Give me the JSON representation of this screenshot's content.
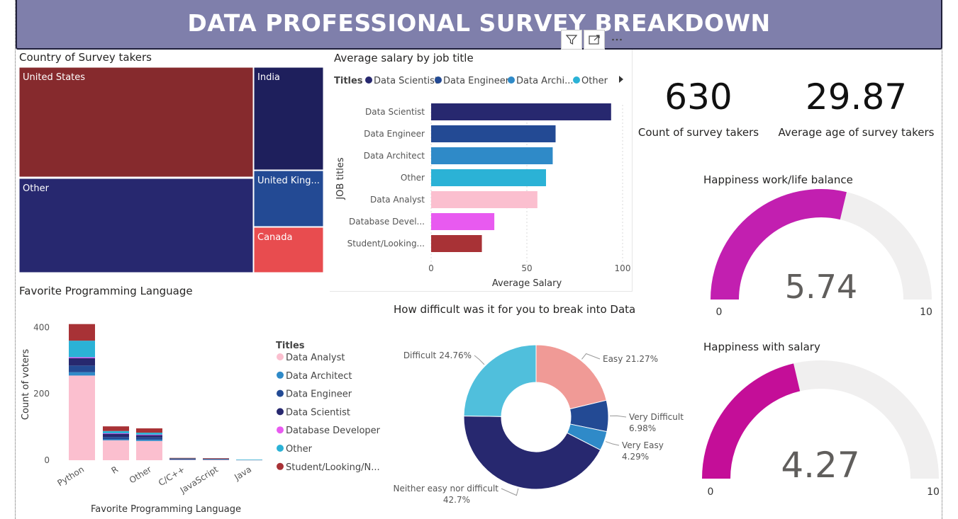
{
  "header": {
    "title": "DATA PROFESSIONAL SURVEY BREAKDOWN"
  },
  "toolbar": {
    "icons": [
      "filter-icon",
      "focus-mode-icon",
      "more-options-icon"
    ]
  },
  "kpis": {
    "count": {
      "value": "630",
      "label": "Count of survey takers"
    },
    "age": {
      "value": "29.87",
      "label": "Average age of survey takers"
    }
  },
  "chart_data": [
    {
      "id": "treemap",
      "type": "treemap",
      "title": "Country of Survey takers",
      "items": [
        {
          "label": "United States",
          "color": "#862a2d"
        },
        {
          "label": "Other",
          "color": "#27286f"
        },
        {
          "label": "India",
          "color": "#1e1f5c"
        },
        {
          "label": "United King...",
          "color": "#234a94"
        },
        {
          "label": "Canada",
          "color": "#e84c4f"
        }
      ]
    },
    {
      "id": "salary",
      "type": "bar",
      "orientation": "horizontal",
      "title": "Average salary by job title",
      "legend_title": "Titles",
      "legend": [
        {
          "name": "Data Scientist",
          "color": "#27286f"
        },
        {
          "name": "Data Engineer",
          "color": "#234a94"
        },
        {
          "name": "Data Archi...",
          "color": "#2f8ac8"
        },
        {
          "name": "Other",
          "color": "#2bb2d6"
        }
      ],
      "categories": [
        "Data Scientist",
        "Data Engineer",
        "Data Architect",
        "Other",
        "Data Analyst",
        "Database Devel...",
        "Student/Looking..."
      ],
      "values": [
        94,
        65,
        63.5,
        60,
        55.5,
        33,
        26.5
      ],
      "colors": [
        "#27286f",
        "#234a94",
        "#2f8ac8",
        "#2bb2d6",
        "#fbbfcf",
        "#e85af0",
        "#a83236"
      ],
      "xlabel": "Average Salary",
      "ylabel": "JOB titles",
      "xticks": [
        0,
        50,
        100
      ],
      "xlim": [
        0,
        100
      ]
    },
    {
      "id": "language",
      "type": "bar",
      "stacked": true,
      "title": "Favorite Programming Language",
      "categories": [
        "Python",
        "R",
        "Other",
        "C/C++",
        "JavaScript",
        "Java"
      ],
      "series": [
        {
          "name": "Data Analyst",
          "color": "#fbbfcf",
          "values": [
            255,
            60,
            58,
            2,
            2,
            1
          ]
        },
        {
          "name": "Data Architect",
          "color": "#2f8ac8",
          "values": [
            10,
            3,
            4,
            1,
            0,
            0
          ]
        },
        {
          "name": "Data Engineer",
          "color": "#234a94",
          "values": [
            20,
            7,
            7,
            1,
            1,
            0
          ]
        },
        {
          "name": "Data Scientist",
          "color": "#27286f",
          "values": [
            22,
            10,
            7,
            1,
            1,
            0
          ]
        },
        {
          "name": "Database Developer",
          "color": "#e85af0",
          "values": [
            3,
            1,
            1,
            0,
            0,
            0
          ]
        },
        {
          "name": "Other",
          "color": "#2bb2d6",
          "values": [
            50,
            7,
            6,
            1,
            1,
            1
          ]
        },
        {
          "name": "Student/Looking/N...",
          "color": "#a83236",
          "values": [
            50,
            14,
            13,
            1,
            1,
            0
          ]
        }
      ],
      "legend_title": "Titles",
      "xlabel": "Favorite Programming Language",
      "ylabel": "Count of voters",
      "yticks": [
        0,
        200,
        400
      ],
      "ylim": [
        0,
        420
      ]
    },
    {
      "id": "difficulty",
      "type": "pie",
      "donut": true,
      "title": "How difficult was it for you to break into Data",
      "slices": [
        {
          "label": "Easy",
          "pct_text": "21.27%",
          "value": 21.27,
          "color": "#f09a96"
        },
        {
          "label": "Very Difficult",
          "pct_text": "6.98%",
          "value": 6.98,
          "color": "#234a94"
        },
        {
          "label": "Very Easy",
          "pct_text": "4.29%",
          "value": 4.29,
          "color": "#2f8ac8"
        },
        {
          "label": "Neither easy nor difficult",
          "pct_text": "42.7%",
          "value": 42.7,
          "color": "#27286f"
        },
        {
          "label": "Difficult",
          "pct_text": "24.76%",
          "value": 24.76,
          "color": "#50bfdc"
        }
      ]
    },
    {
      "id": "gauge_worklife",
      "type": "gauge",
      "title": "Happiness work/life balance",
      "value": 5.74,
      "value_text": "5.74",
      "min": 0,
      "max": 10,
      "min_text": "0",
      "max_text": "10",
      "color": "#c21fb0"
    },
    {
      "id": "gauge_salary",
      "type": "gauge",
      "title": "Happiness with salary",
      "value": 4.27,
      "value_text": "4.27",
      "min": 0,
      "max": 10,
      "min_text": "0",
      "max_text": "10",
      "color": "#c40e98"
    }
  ]
}
